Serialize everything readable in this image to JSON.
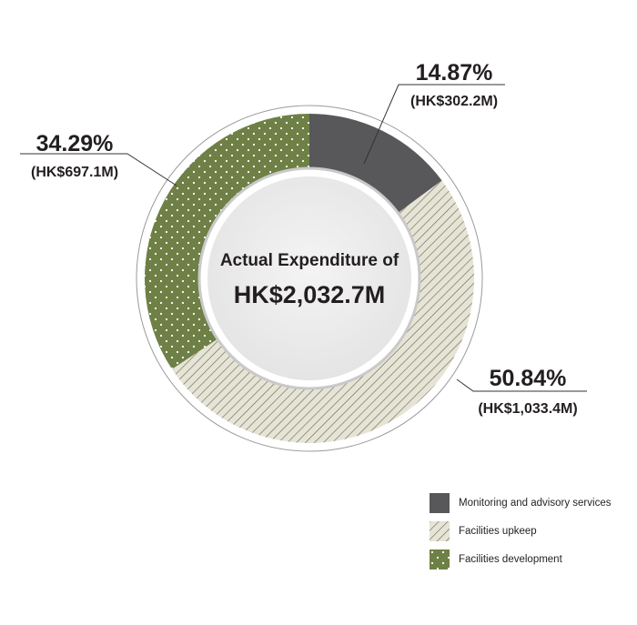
{
  "chart_data": {
    "type": "pie",
    "center_title": "Actual Expenditure of",
    "center_total": "HK$2,032.7M",
    "slices": [
      {
        "name": "Monitoring and advisory services",
        "percent_label": "14.87%",
        "amount_label": "(HK$302.2M)",
        "value": 302.2,
        "percent": 14.87,
        "color": "#58585a",
        "pattern": "solid"
      },
      {
        "name": "Facilities upkeep",
        "percent_label": "50.84%",
        "amount_label": "(HK$1,033.4M)",
        "value": 1033.4,
        "percent": 50.84,
        "color": "#d8d6c3",
        "pattern": "diagonal-stripes"
      },
      {
        "name": "Facilities development",
        "percent_label": "34.29%",
        "amount_label": "(HK$697.1M)",
        "value": 697.1,
        "percent": 34.29,
        "color": "#6e8046",
        "pattern": "dots"
      }
    ]
  }
}
